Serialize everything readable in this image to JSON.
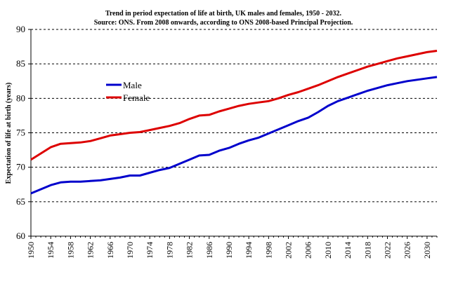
{
  "chart_data": {
    "type": "line",
    "title": "Trend in period expectation of life at birth, UK males and females, 1950 - 2032.",
    "subtitle": "Source: ONS. From 2008 onwards, according to ONS 2008-based Principal Projection.",
    "xlabel": "",
    "ylabel": "Expectation of life at birth (years)",
    "ylim": [
      60,
      90
    ],
    "yticks": [
      60,
      65,
      70,
      75,
      80,
      85,
      90
    ],
    "xlim": [
      1950,
      2032
    ],
    "xticks": [
      "1950",
      "1954",
      "1958",
      "1962",
      "1966",
      "1970",
      "1974",
      "1978",
      "1982",
      "1986",
      "1990",
      "1994",
      "1998",
      "2002",
      "2006",
      "2010",
      "2014",
      "2018",
      "2022",
      "2026",
      "2030"
    ],
    "grid": true,
    "legend_position": "upper-left",
    "series": [
      {
        "name": "Male",
        "color": "#0000cc",
        "x": [
          1950,
          1952,
          1954,
          1956,
          1958,
          1960,
          1962,
          1964,
          1966,
          1968,
          1970,
          1972,
          1974,
          1976,
          1978,
          1980,
          1982,
          1984,
          1986,
          1988,
          1990,
          1992,
          1994,
          1996,
          1998,
          2000,
          2002,
          2004,
          2006,
          2008,
          2010,
          2012,
          2014,
          2016,
          2018,
          2020,
          2022,
          2024,
          2026,
          2028,
          2030,
          2032
        ],
        "values": [
          66.2,
          66.8,
          67.4,
          67.8,
          67.9,
          67.9,
          68.0,
          68.1,
          68.3,
          68.5,
          68.8,
          68.8,
          69.2,
          69.6,
          69.9,
          70.5,
          71.1,
          71.7,
          71.8,
          72.4,
          72.8,
          73.4,
          73.9,
          74.3,
          74.9,
          75.5,
          76.1,
          76.7,
          77.2,
          78.0,
          78.9,
          79.6,
          80.1,
          80.6,
          81.1,
          81.5,
          81.9,
          82.2,
          82.5,
          82.7,
          82.9,
          83.1
        ]
      },
      {
        "name": "Female",
        "color": "#dd0000",
        "x": [
          1950,
          1952,
          1954,
          1956,
          1958,
          1960,
          1962,
          1964,
          1966,
          1968,
          1970,
          1972,
          1974,
          1976,
          1978,
          1980,
          1982,
          1984,
          1986,
          1988,
          1990,
          1992,
          1994,
          1996,
          1998,
          2000,
          2002,
          2004,
          2006,
          2008,
          2010,
          2012,
          2014,
          2016,
          2018,
          2020,
          2022,
          2024,
          2026,
          2028,
          2030,
          2032
        ],
        "values": [
          71.1,
          72.0,
          72.9,
          73.4,
          73.5,
          73.6,
          73.8,
          74.2,
          74.6,
          74.8,
          75.0,
          75.1,
          75.4,
          75.7,
          76.0,
          76.4,
          77.0,
          77.5,
          77.6,
          78.1,
          78.5,
          78.9,
          79.2,
          79.4,
          79.6,
          80.0,
          80.5,
          80.9,
          81.4,
          81.9,
          82.5,
          83.1,
          83.6,
          84.1,
          84.6,
          85.0,
          85.4,
          85.8,
          86.1,
          86.4,
          86.7,
          86.9
        ]
      }
    ]
  }
}
